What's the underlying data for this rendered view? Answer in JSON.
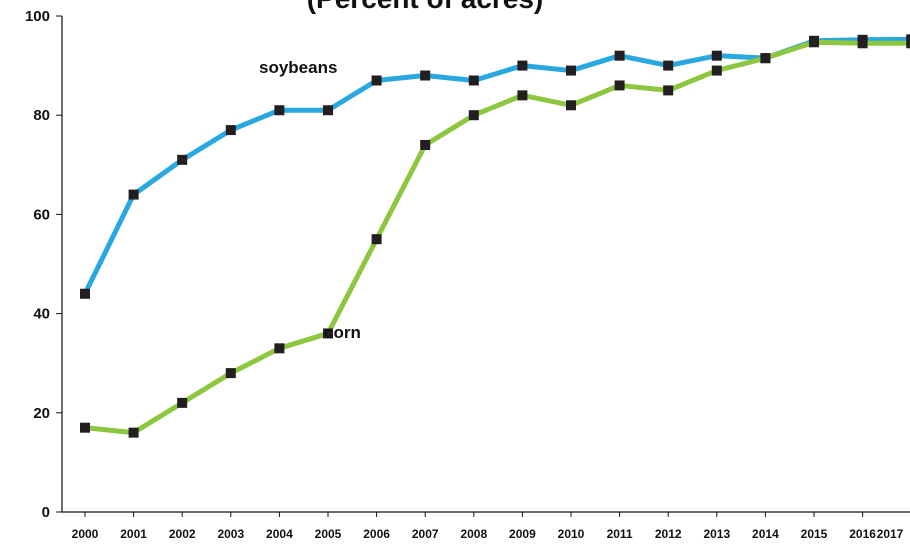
{
  "chart_data": {
    "type": "line",
    "title": "(Percent of acres)",
    "x": [
      "2000",
      "2001",
      "2002",
      "2003",
      "2004",
      "2005",
      "2006",
      "2007",
      "2008",
      "2009",
      "2010",
      "2011",
      "2012",
      "2013",
      "2014",
      "2015",
      "2016",
      "2017"
    ],
    "series": [
      {
        "name": "soybeans",
        "color": "#29a8e0",
        "values": [
          44,
          64,
          71,
          77,
          81,
          81,
          87,
          88,
          87,
          90,
          89,
          92,
          90,
          92,
          91.5,
          95,
          95.2,
          95.3
        ]
      },
      {
        "name": "corn",
        "color": "#8dc63f",
        "values": [
          17,
          16,
          22,
          28,
          33,
          36,
          55,
          74,
          80,
          84,
          82,
          86,
          85,
          89,
          91.5,
          94.7,
          94.5,
          94.5
        ]
      }
    ],
    "yticks": [
      0,
      20,
      40,
      60,
      80,
      100
    ],
    "ylim": [
      0,
      100
    ],
    "grid": false,
    "legend": "none",
    "marker_color": "#231f20"
  }
}
